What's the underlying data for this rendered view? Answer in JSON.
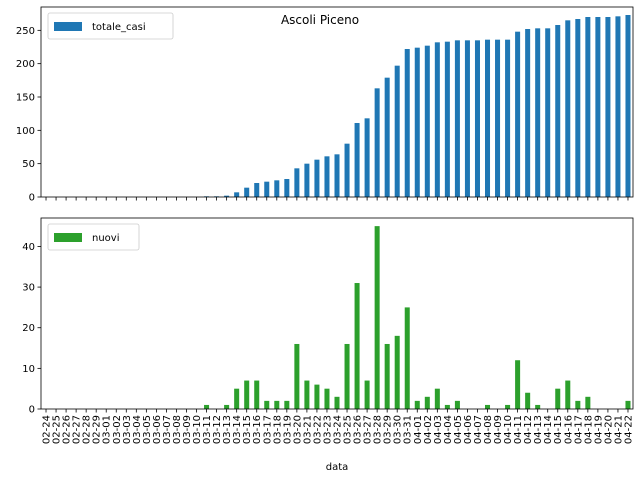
{
  "chart_data": [
    {
      "type": "bar",
      "title": "Ascoli Piceno",
      "xlabel": "",
      "ylabel": "",
      "ylim": [
        0,
        285
      ],
      "yticks": [
        0,
        50,
        100,
        150,
        200,
        250
      ],
      "grid": false,
      "legend_position": "top-left",
      "categories": [
        "02-24",
        "02-25",
        "02-26",
        "02-27",
        "02-28",
        "02-29",
        "03-01",
        "03-02",
        "03-03",
        "03-04",
        "03-05",
        "03-06",
        "03-07",
        "03-08",
        "03-09",
        "03-10",
        "03-11",
        "03-12",
        "03-13",
        "03-14",
        "03-15",
        "03-16",
        "03-17",
        "03-18",
        "03-19",
        "03-20",
        "03-21",
        "03-22",
        "03-23",
        "03-24",
        "03-25",
        "03-26",
        "03-27",
        "03-28",
        "03-29",
        "03-30",
        "03-31",
        "04-01",
        "04-02",
        "04-03",
        "04-04",
        "04-05",
        "04-06",
        "04-07",
        "04-08",
        "04-09",
        "04-10",
        "04-11",
        "04-12",
        "04-13",
        "04-14",
        "04-15",
        "04-16",
        "04-17",
        "04-18",
        "04-19",
        "04-20",
        "04-21",
        "04-22"
      ],
      "series": [
        {
          "name": "totale_casi",
          "color": "#1f77b4",
          "values": [
            0,
            0,
            0,
            0,
            0,
            0,
            0,
            0,
            0,
            0,
            0,
            0,
            0,
            0,
            0,
            0,
            1,
            1,
            2,
            7,
            14,
            21,
            23,
            25,
            27,
            43,
            50,
            56,
            61,
            64,
            80,
            111,
            118,
            163,
            179,
            197,
            222,
            224,
            227,
            232,
            233,
            235,
            235,
            235,
            236,
            236,
            236,
            248,
            252,
            253,
            253,
            258,
            265,
            267,
            270,
            270,
            270,
            271,
            273
          ]
        }
      ]
    },
    {
      "type": "bar",
      "title": "",
      "xlabel": "data",
      "ylabel": "",
      "ylim": [
        0,
        47
      ],
      "yticks": [
        0,
        10,
        20,
        30,
        40
      ],
      "grid": false,
      "legend_position": "top-left",
      "categories": [
        "02-24",
        "02-25",
        "02-26",
        "02-27",
        "02-28",
        "02-29",
        "03-01",
        "03-02",
        "03-03",
        "03-04",
        "03-05",
        "03-06",
        "03-07",
        "03-08",
        "03-09",
        "03-10",
        "03-11",
        "03-12",
        "03-13",
        "03-14",
        "03-15",
        "03-16",
        "03-17",
        "03-18",
        "03-19",
        "03-20",
        "03-21",
        "03-22",
        "03-23",
        "03-24",
        "03-25",
        "03-26",
        "03-27",
        "03-28",
        "03-29",
        "03-30",
        "03-31",
        "04-01",
        "04-02",
        "04-03",
        "04-04",
        "04-05",
        "04-06",
        "04-07",
        "04-08",
        "04-09",
        "04-10",
        "04-11",
        "04-12",
        "04-13",
        "04-14",
        "04-15",
        "04-16",
        "04-17",
        "04-18",
        "04-19",
        "04-20",
        "04-21",
        "04-22"
      ],
      "series": [
        {
          "name": "nuovi",
          "color": "#2ca02c",
          "values": [
            0,
            0,
            0,
            0,
            0,
            0,
            0,
            0,
            0,
            0,
            0,
            0,
            0,
            0,
            0,
            0,
            1,
            0,
            1,
            5,
            7,
            7,
            2,
            2,
            2,
            16,
            7,
            6,
            5,
            3,
            16,
            31,
            7,
            45,
            16,
            18,
            25,
            2,
            3,
            5,
            1,
            2,
            0,
            0,
            1,
            0,
            1,
            12,
            4,
            1,
            0,
            5,
            7,
            2,
            3,
            0,
            0,
            0,
            2
          ]
        }
      ]
    }
  ]
}
